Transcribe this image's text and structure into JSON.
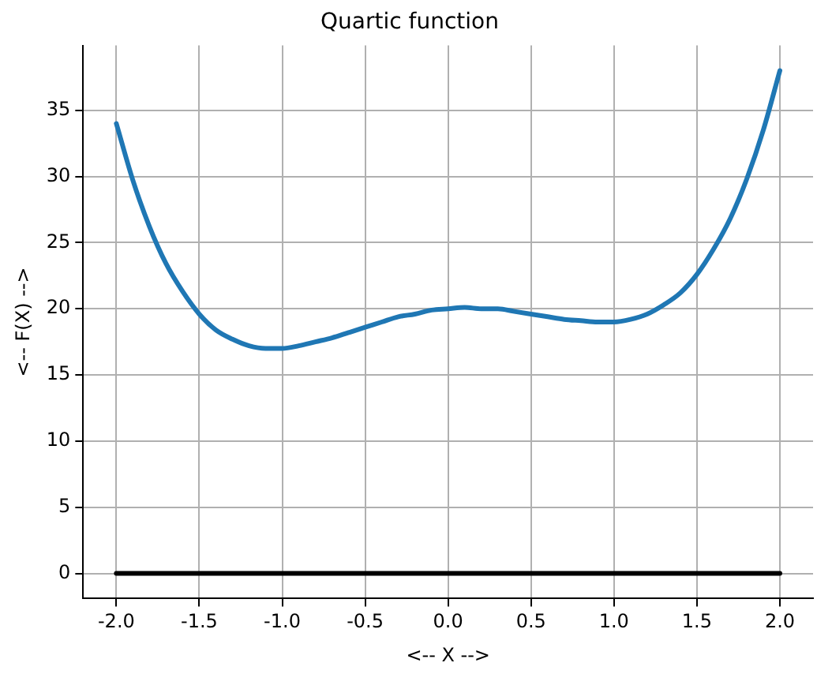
{
  "chart_data": {
    "type": "line",
    "title": "Quartic function",
    "xlabel": "<-- X -->",
    "ylabel": "<-- F(X) -->",
    "xlim": [
      -2.2,
      2.2
    ],
    "ylim": [
      -1.9,
      39.9
    ],
    "xticks": [
      {
        "value": -2,
        "label": "-2.0"
      },
      {
        "value": -1.5,
        "label": "-1.5"
      },
      {
        "value": -1,
        "label": "-1.0"
      },
      {
        "value": -0.5,
        "label": "-0.5"
      },
      {
        "value": 0,
        "label": "0.0"
      },
      {
        "value": 0.5,
        "label": "0.5"
      },
      {
        "value": 1,
        "label": "1.0"
      },
      {
        "value": 1.5,
        "label": "1.5"
      },
      {
        "value": 2,
        "label": "2.0"
      }
    ],
    "yticks": [
      0,
      5,
      10,
      15,
      20,
      25,
      30,
      35
    ],
    "grid": true,
    "legend": false,
    "marker": "none",
    "line_style": "solid",
    "series": [
      {
        "color": "#1f77b4",
        "x": [
          -2,
          -1.9,
          -1.8,
          -1.7,
          -1.6,
          -1.5,
          -1.4,
          -1.3,
          -1.2,
          -1.1,
          -1,
          -0.9,
          -0.8,
          -0.7,
          -0.6,
          -0.5,
          -0.4,
          -0.3,
          -0.2,
          -0.1,
          0,
          0.1,
          0.2,
          0.3,
          0.4,
          0.5,
          0.6,
          0.7,
          0.8,
          0.9,
          1,
          1.1,
          1.2,
          1.3,
          1.4,
          1.5,
          1.6,
          1.7,
          1.8,
          1.9,
          2
        ],
        "values": [
          34,
          29.7,
          26.2,
          23.4,
          21.3,
          19.6,
          18.4,
          17.7,
          17.2,
          17,
          17,
          17.2,
          17.5,
          17.8,
          18.2,
          18.6,
          19,
          19.4,
          19.6,
          19.9,
          20,
          20.1,
          20,
          20,
          19.8,
          19.6,
          19.4,
          19.2,
          19.1,
          19,
          19,
          19.2,
          19.6,
          20.3,
          21.2,
          22.6,
          24.5,
          26.8,
          29.8,
          33.5,
          38
        ]
      },
      {
        "color": "#000000",
        "x": [
          -2,
          2
        ],
        "values": [
          0,
          0
        ]
      }
    ]
  }
}
